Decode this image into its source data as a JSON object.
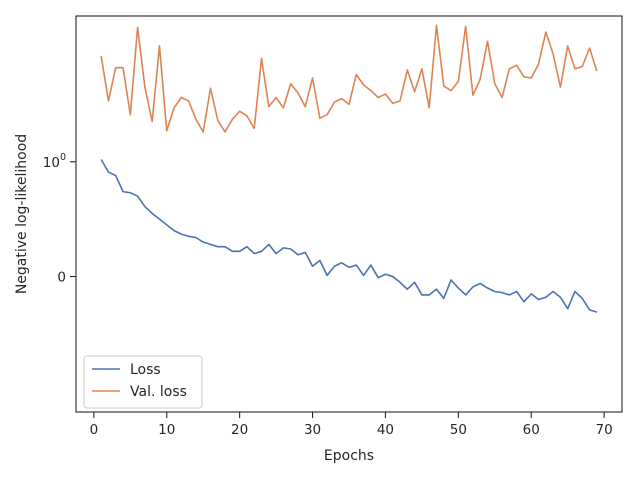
{
  "chart_data": {
    "type": "line",
    "xlabel": "Epochs",
    "ylabel": "Negative log-likelihood",
    "xlim": [
      -2.45,
      72.45
    ],
    "ylim": [
      -1.18,
      2.27
    ],
    "x_ticks": [
      0,
      10,
      20,
      30,
      40,
      50,
      60,
      70
    ],
    "y_ticks": [
      {
        "value": 1.0,
        "base": "10",
        "exp": "0"
      },
      {
        "value": 0.0,
        "label": "0"
      }
    ],
    "legend_position": "lower-left",
    "grid": false,
    "series": [
      {
        "name": "Loss",
        "color": "#4c72b0",
        "x": [
          1,
          2,
          3,
          4,
          5,
          6,
          7,
          8,
          9,
          10,
          11,
          12,
          13,
          14,
          15,
          16,
          17,
          18,
          19,
          20,
          21,
          22,
          23,
          24,
          25,
          26,
          27,
          28,
          29,
          30,
          31,
          32,
          33,
          34,
          35,
          36,
          37,
          38,
          39,
          40,
          41,
          42,
          43,
          44,
          45,
          46,
          47,
          48,
          49,
          50,
          51,
          52,
          53,
          54,
          55,
          56,
          57,
          58,
          59,
          60,
          61,
          62,
          63,
          64,
          65,
          66,
          67,
          68,
          69
        ],
        "values": [
          1.02,
          0.91,
          0.88,
          0.74,
          0.73,
          0.7,
          0.61,
          0.55,
          0.5,
          0.45,
          0.4,
          0.37,
          0.35,
          0.34,
          0.3,
          0.28,
          0.26,
          0.26,
          0.22,
          0.22,
          0.26,
          0.2,
          0.22,
          0.28,
          0.2,
          0.25,
          0.24,
          0.19,
          0.21,
          0.09,
          0.14,
          0.01,
          0.09,
          0.12,
          0.08,
          0.1,
          0.01,
          0.1,
          -0.01,
          0.02,
          0.0,
          -0.05,
          -0.11,
          -0.05,
          -0.16,
          -0.16,
          -0.11,
          -0.19,
          -0.03,
          -0.1,
          -0.16,
          -0.09,
          -0.06,
          -0.1,
          -0.13,
          -0.14,
          -0.16,
          -0.13,
          -0.22,
          -0.15,
          -0.2,
          -0.18,
          -0.13,
          -0.18,
          -0.28,
          -0.13,
          -0.19,
          -0.29,
          -0.31
        ]
      },
      {
        "name": "Val. loss",
        "color": "#dd8452",
        "x": [
          1,
          2,
          3,
          4,
          5,
          6,
          7,
          8,
          9,
          10,
          11,
          12,
          13,
          14,
          15,
          16,
          17,
          18,
          19,
          20,
          21,
          22,
          23,
          24,
          25,
          26,
          27,
          28,
          29,
          30,
          31,
          32,
          33,
          34,
          35,
          36,
          37,
          38,
          39,
          40,
          41,
          42,
          43,
          44,
          45,
          46,
          47,
          48,
          49,
          50,
          51,
          52,
          53,
          54,
          55,
          56,
          57,
          58,
          59,
          60,
          61,
          62,
          63,
          64,
          65,
          66,
          67,
          68,
          69
        ],
        "values": [
          1.92,
          1.53,
          1.82,
          1.82,
          1.41,
          2.17,
          1.65,
          1.35,
          2.01,
          1.27,
          1.47,
          1.56,
          1.53,
          1.37,
          1.26,
          1.64,
          1.36,
          1.26,
          1.37,
          1.44,
          1.4,
          1.29,
          1.9,
          1.48,
          1.56,
          1.47,
          1.68,
          1.6,
          1.48,
          1.73,
          1.38,
          1.41,
          1.52,
          1.55,
          1.5,
          1.76,
          1.67,
          1.62,
          1.56,
          1.59,
          1.51,
          1.53,
          1.8,
          1.61,
          1.81,
          1.47,
          2.19,
          1.66,
          1.62,
          1.7,
          2.18,
          1.58,
          1.72,
          2.05,
          1.68,
          1.56,
          1.81,
          1.84,
          1.74,
          1.73,
          1.85,
          2.13,
          1.94,
          1.65,
          2.01,
          1.81,
          1.83,
          1.99,
          1.79
        ]
      }
    ]
  },
  "colors": {
    "axis": "#262626",
    "background": "#ffffff",
    "legend_border": "#cccccc"
  }
}
